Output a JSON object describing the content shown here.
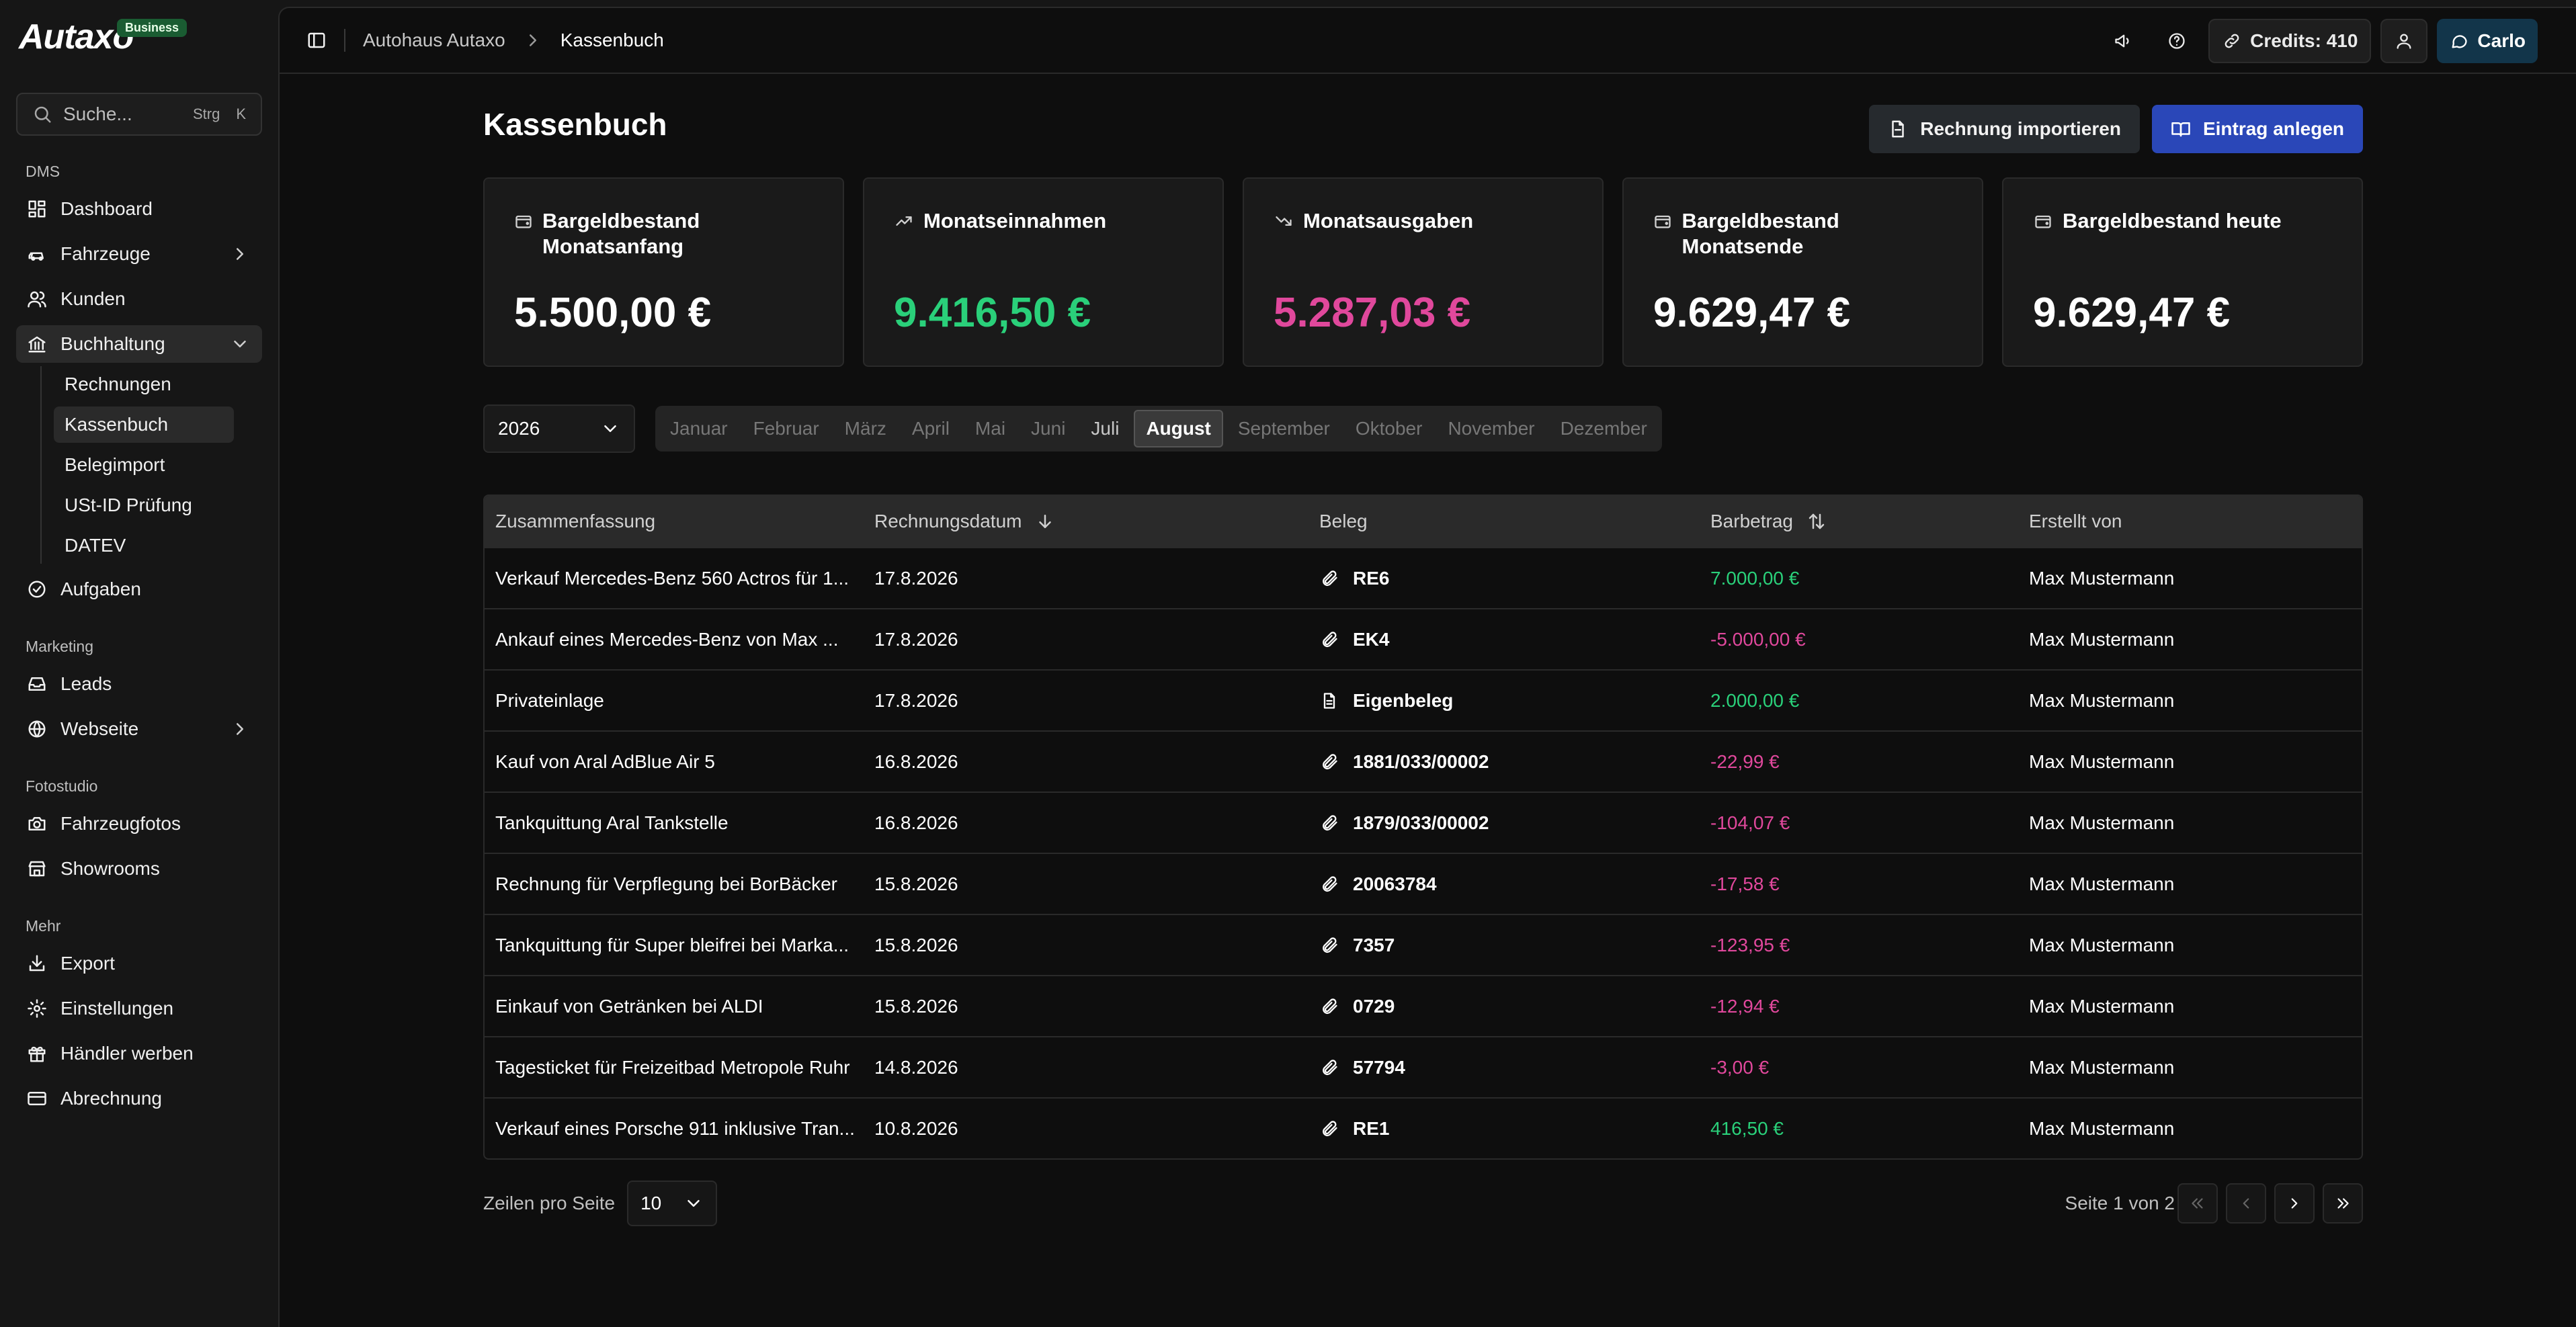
{
  "brand": {
    "name": "Autaxo",
    "badge": "Business"
  },
  "search": {
    "placeholder": "Suche...",
    "shortcut_mod": "Strg",
    "shortcut_key": "K"
  },
  "sidebar": {
    "sections": {
      "dms": "DMS",
      "marketing": "Marketing",
      "fotostudio": "Fotostudio",
      "mehr": "Mehr"
    },
    "dms_items": {
      "dashboard": "Dashboard",
      "fahrzeuge": "Fahrzeuge",
      "kunden": "Kunden",
      "buchhaltung": "Buchhaltung",
      "aufgaben": "Aufgaben"
    },
    "buchhaltung_sub": [
      "Rechnungen",
      "Kassenbuch",
      "Belegimport",
      "USt-ID Prüfung",
      "DATEV"
    ],
    "marketing_items": {
      "leads": "Leads",
      "webseite": "Webseite"
    },
    "foto_items": {
      "fahrzeugfotos": "Fahrzeugfotos",
      "showrooms": "Showrooms"
    },
    "mehr_items": {
      "export": "Export",
      "einstellungen": "Einstellungen",
      "haendler": "Händler werben",
      "abrechnung": "Abrechnung"
    }
  },
  "topbar": {
    "breadcrumb": [
      "Autohaus Autaxo",
      "Kassenbuch"
    ],
    "credits": "Credits: 410",
    "user": "Carlo"
  },
  "page": {
    "title": "Kassenbuch",
    "import_button": "Rechnung importieren",
    "create_button": "Eintrag anlegen"
  },
  "cards": [
    {
      "label": "Bargeldbestand Monatsanfang",
      "value": "5.500,00 €",
      "tone": "neutral",
      "icon": "wallet-icon"
    },
    {
      "label": "Monatseinnahmen",
      "value": "9.416,50 €",
      "tone": "pos",
      "icon": "trending-up-icon"
    },
    {
      "label": "Monatsausgaben",
      "value": "5.287,03 €",
      "tone": "neg",
      "icon": "trending-down-icon"
    },
    {
      "label": "Bargeldbestand Monatsende",
      "value": "9.629,47 €",
      "tone": "neutral",
      "icon": "wallet-icon"
    },
    {
      "label": "Bargeldbestand heute",
      "value": "9.629,47 €",
      "tone": "neutral",
      "icon": "wallet-icon"
    }
  ],
  "filters": {
    "year": "2026",
    "months": [
      "Januar",
      "Februar",
      "März",
      "April",
      "Mai",
      "Juni",
      "Juli",
      "August",
      "September",
      "Oktober",
      "November",
      "Dezember"
    ],
    "active_month": "August"
  },
  "table": {
    "columns": [
      "Zusammenfassung",
      "Rechnungsdatum",
      "Beleg",
      "Barbetrag",
      "Erstellt von"
    ],
    "rows": [
      {
        "summary": "Verkauf Mercedes-Benz 560 Actros für 1...",
        "date": "17.8.2026",
        "doc": "RE6",
        "doc_icon": "paperclip-icon",
        "amount": "7.000,00 €",
        "sign": "pos",
        "by": "Max Mustermann"
      },
      {
        "summary": "Ankauf eines Mercedes-Benz von Max ...",
        "date": "17.8.2026",
        "doc": "EK4",
        "doc_icon": "paperclip-icon",
        "amount": "-5.000,00 €",
        "sign": "neg",
        "by": "Max Mustermann"
      },
      {
        "summary": "Privateinlage",
        "date": "17.8.2026",
        "doc": "Eigenbeleg",
        "doc_icon": "document-icon",
        "amount": "2.000,00 €",
        "sign": "pos",
        "by": "Max Mustermann"
      },
      {
        "summary": "Kauf von Aral AdBlue Air 5",
        "date": "16.8.2026",
        "doc": "1881/033/00002",
        "doc_icon": "paperclip-icon",
        "amount": "-22,99 €",
        "sign": "neg",
        "by": "Max Mustermann"
      },
      {
        "summary": "Tankquittung Aral Tankstelle",
        "date": "16.8.2026",
        "doc": "1879/033/00002",
        "doc_icon": "paperclip-icon",
        "amount": "-104,07 €",
        "sign": "neg",
        "by": "Max Mustermann"
      },
      {
        "summary": "Rechnung für Verpflegung bei BorBäcker",
        "date": "15.8.2026",
        "doc": "20063784",
        "doc_icon": "paperclip-icon",
        "amount": "-17,58 €",
        "sign": "neg",
        "by": "Max Mustermann"
      },
      {
        "summary": "Tankquittung für Super bleifrei bei Marka...",
        "date": "15.8.2026",
        "doc": "7357",
        "doc_icon": "paperclip-icon",
        "amount": "-123,95 €",
        "sign": "neg",
        "by": "Max Mustermann"
      },
      {
        "summary": "Einkauf von Getränken bei ALDI",
        "date": "15.8.2026",
        "doc": "0729",
        "doc_icon": "paperclip-icon",
        "amount": "-12,94 €",
        "sign": "neg",
        "by": "Max Mustermann"
      },
      {
        "summary": "Tagesticket für Freizeitbad Metropole Ruhr",
        "date": "14.8.2026",
        "doc": "57794",
        "doc_icon": "paperclip-icon",
        "amount": "-3,00 €",
        "sign": "neg",
        "by": "Max Mustermann"
      },
      {
        "summary": "Verkauf eines Porsche 911 inklusive Tran...",
        "date": "10.8.2026",
        "doc": "RE1",
        "doc_icon": "paperclip-icon",
        "amount": "416,50 €",
        "sign": "pos",
        "by": "Max Mustermann"
      }
    ]
  },
  "pagination": {
    "rows_label": "Zeilen pro Seite",
    "rows_value": "10",
    "page_info": "Seite 1 von 2"
  },
  "colors": {
    "accent": "#2a47b8",
    "positive": "#2ad07a",
    "negative": "#e0489c",
    "user_button": "#12354a"
  }
}
